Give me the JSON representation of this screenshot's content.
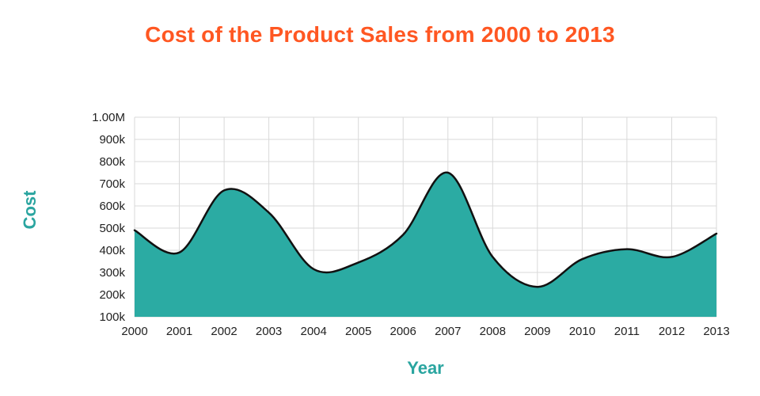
{
  "chart_data": {
    "type": "area",
    "title": "Cost of the Product Sales from 2000 to 2013",
    "xlabel": "Year",
    "ylabel": "Cost",
    "categories": [
      "2000",
      "2001",
      "2002",
      "2003",
      "2004",
      "2005",
      "2006",
      "2007",
      "2008",
      "2009",
      "2010",
      "2011",
      "2012",
      "2013"
    ],
    "series": [
      {
        "name": "Cost",
        "values": [
          490000,
          390000,
          670000,
          570000,
          315000,
          345000,
          470000,
          750000,
          370000,
          235000,
          360000,
          405000,
          370000,
          475000
        ]
      }
    ],
    "ylim": [
      100000,
      1000000
    ],
    "yticks": [
      100000,
      200000,
      300000,
      400000,
      500000,
      600000,
      700000,
      800000,
      900000,
      1000000
    ],
    "ytick_labels": [
      "100k",
      "200k",
      "300k",
      "400k",
      "500k",
      "600k",
      "700k",
      "800k",
      "900k",
      "1.00M"
    ],
    "grid": true,
    "legend_position": "none",
    "colors": {
      "title": "#FF5722",
      "axis_label": "#2AA5A0",
      "area_fill": "#2BABA3",
      "line": "#111111",
      "gridline": "#d9d9d9",
      "tick_text": "#222222"
    }
  }
}
